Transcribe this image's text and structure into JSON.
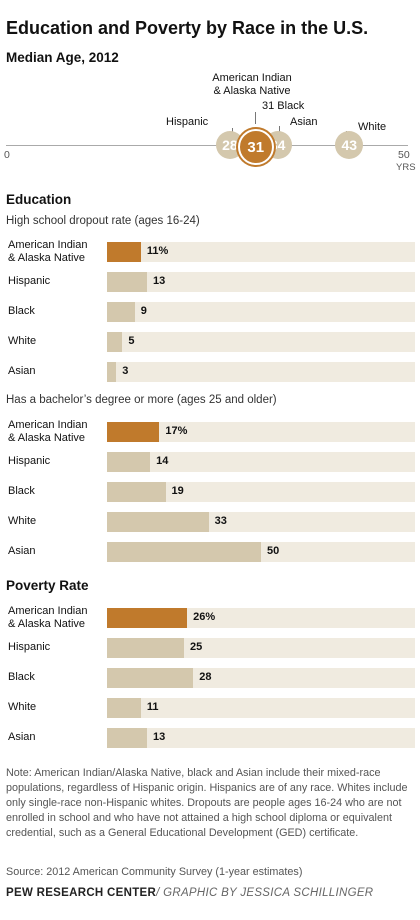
{
  "title": "Education and Poverty by Race in the U.S.",
  "median_age": {
    "heading": "Median Age, 2012",
    "axis_min_label": "0",
    "axis_max_label": "50",
    "axis_unit": "YRS"
  },
  "education": {
    "heading": "Education",
    "dropout_subtitle": "High school dropout rate (ages 16-24)",
    "bachelor_subtitle": "Has a bachelor’s degree or more (ages 25 and older)"
  },
  "poverty": {
    "heading": "Poverty Rate"
  },
  "chart_data": [
    {
      "type": "scatter",
      "title": "Median Age, 2012",
      "xlim": [
        0,
        50
      ],
      "xlabel": "YRS",
      "points": [
        {
          "label": "Hispanic",
          "value": 28,
          "display": "28"
        },
        {
          "label": "American Indian\n& Alaska Native",
          "value": 31,
          "display": "31"
        },
        {
          "label": "31 Black",
          "value": 34,
          "display": "34"
        },
        {
          "label": "Asian",
          "value": 34,
          "display": ""
        },
        {
          "label": "White",
          "value": 43,
          "display": "43"
        }
      ]
    },
    {
      "type": "bar",
      "title": "High school dropout rate (ages 16-24)",
      "xlim": [
        0,
        100
      ],
      "categories": [
        "American Indian\n& Alaska Native",
        "Hispanic",
        "Black",
        "White",
        "Asian"
      ],
      "values": [
        11,
        13,
        9,
        5,
        3
      ],
      "labels": [
        "11%",
        "13",
        "9",
        "5",
        "3"
      ]
    },
    {
      "type": "bar",
      "title": "Has a bachelor’s degree or more (ages 25 and older)",
      "xlim": [
        0,
        100
      ],
      "categories": [
        "American Indian\n& Alaska Native",
        "Hispanic",
        "Black",
        "White",
        "Asian"
      ],
      "values": [
        17,
        14,
        19,
        33,
        50
      ],
      "labels": [
        "17%",
        "14",
        "19",
        "33",
        "50"
      ]
    },
    {
      "type": "bar",
      "title": "Poverty Rate",
      "xlim": [
        0,
        100
      ],
      "categories": [
        "American Indian\n& Alaska Native",
        "Hispanic",
        "Black",
        "White",
        "Asian"
      ],
      "values": [
        26,
        25,
        28,
        11,
        13
      ],
      "labels": [
        "26%",
        "25",
        "28",
        "11",
        "13"
      ]
    }
  ],
  "colors": {
    "highlight": "#c07a2c",
    "bar": "#d4c8ad",
    "track": "#f0ebe0",
    "bubble": "#d4c8ad"
  },
  "note": "Note: American Indian/Alaska Native, black and Asian include their mixed-race populations, regardless of Hispanic origin. Hispanics are of any race. Whites include only single-race non-Hispanic whites. Dropouts are people ages 16-24 who are not enrolled in school and who have not attained a high school diploma or equivalent credential, such as a General Educational Development (GED) certificate.",
  "source": "Source: 2012 American Community Survey (1-year estimates)",
  "footer": {
    "org": "PEW RESEARCH CENTER",
    "credit": "/ GRAPHIC BY JESSICA SCHILLINGER"
  }
}
